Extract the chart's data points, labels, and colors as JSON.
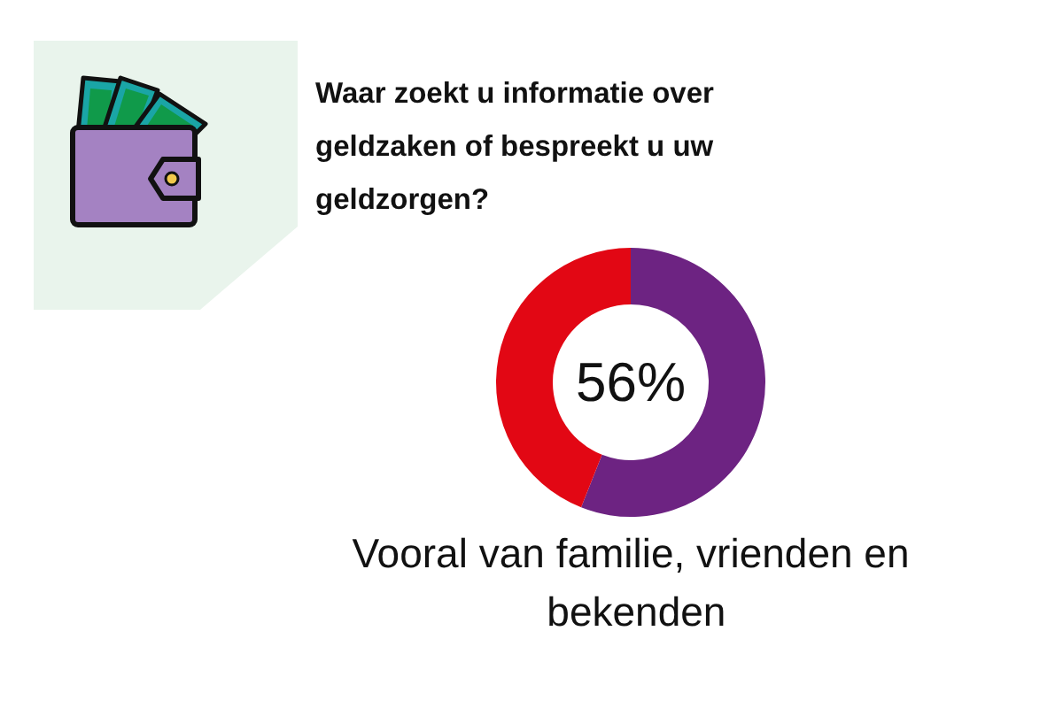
{
  "chart_data": {
    "type": "donut",
    "title": "Waar zoekt u informatie over geldzaken of bespreekt u uw geldzorgen?",
    "categories": [
      "Vooral van familie, vrienden en bekenden",
      null
    ],
    "values": [
      56,
      44
    ],
    "colors": [
      "#6d2382",
      "#e20714"
    ],
    "annotations": [
      "56%"
    ]
  }
}
